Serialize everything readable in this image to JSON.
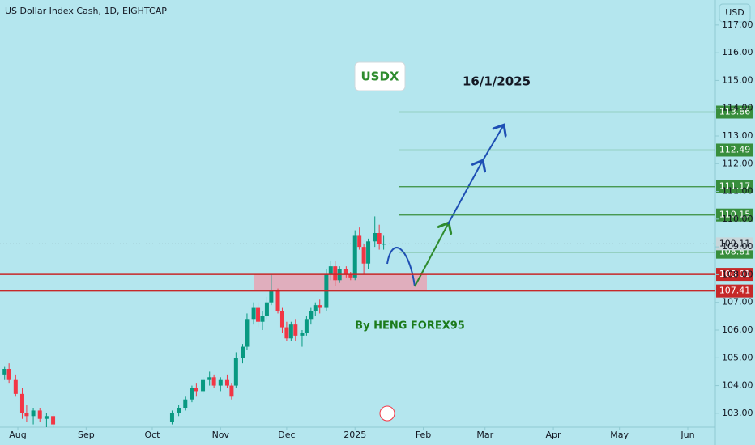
{
  "chart_data": {
    "type": "candlestick",
    "title": "US Dollar Index Cash, 1D, EIGHTCAP",
    "currency": "USD",
    "annotations": {
      "symbol": "USDX",
      "date": "16/1/2025",
      "author": "By HENG FOREX95"
    },
    "colors": {
      "up": "#089981",
      "down": "#f23645"
    },
    "x": [
      -6,
      -4,
      -1,
      2,
      4,
      7,
      10,
      13,
      16,
      70,
      73,
      76,
      79,
      81,
      84,
      87,
      89,
      92,
      95,
      97,
      99,
      102,
      104,
      107,
      109,
      111,
      113,
      115,
      118,
      120,
      122,
      124,
      126,
      129,
      131,
      133,
      135,
      137,
      140,
      142,
      144,
      146,
      149,
      151,
      153,
      155,
      157,
      159,
      162,
      164,
      166
    ],
    "open": [
      104.4,
      104.6,
      104.2,
      103.7,
      103.0,
      102.9,
      103.1,
      102.8,
      102.9,
      102.7,
      103.0,
      103.2,
      103.5,
      103.9,
      103.8,
      104.2,
      104.3,
      104.0,
      104.2,
      104.0,
      104.0,
      105.0,
      105.4,
      106.4,
      106.8,
      106.3,
      106.5,
      107.0,
      107.4,
      106.7,
      106.1,
      105.7,
      106.2,
      105.8,
      105.9,
      106.4,
      106.7,
      106.9,
      106.8,
      108.0,
      108.3,
      107.8,
      108.2,
      108.0,
      107.9,
      109.4,
      109.0,
      108.4,
      109.2,
      109.5,
      109.1
    ],
    "high": [
      104.7,
      104.8,
      104.4,
      103.9,
      103.3,
      103.2,
      103.2,
      103.0,
      103.0,
      103.1,
      103.3,
      103.6,
      104.0,
      104.1,
      104.3,
      104.5,
      104.4,
      104.3,
      104.4,
      104.1,
      105.2,
      105.5,
      106.6,
      107.0,
      107.0,
      106.7,
      107.2,
      108.0,
      107.5,
      106.8,
      106.3,
      106.3,
      106.4,
      106.0,
      106.5,
      106.8,
      107.0,
      107.1,
      108.2,
      108.5,
      108.5,
      108.3,
      108.3,
      108.1,
      109.6,
      109.7,
      109.1,
      109.3,
      110.1,
      109.8,
      109.4
    ],
    "low": [
      104.2,
      104.1,
      103.6,
      102.8,
      102.7,
      102.6,
      102.7,
      102.5,
      102.4,
      102.6,
      102.9,
      103.1,
      103.4,
      103.6,
      103.7,
      104.0,
      103.9,
      103.8,
      103.9,
      103.5,
      103.9,
      104.8,
      105.3,
      106.2,
      106.1,
      106.0,
      106.4,
      106.9,
      106.6,
      105.9,
      105.6,
      105.6,
      105.6,
      105.4,
      105.8,
      106.2,
      106.5,
      106.6,
      106.7,
      107.8,
      107.6,
      107.7,
      107.9,
      107.8,
      107.8,
      108.9,
      108.0,
      108.2,
      109.0,
      108.9,
      108.9
    ],
    "close": [
      104.6,
      104.2,
      103.7,
      103.0,
      102.9,
      103.1,
      102.8,
      102.9,
      102.6,
      103.0,
      103.2,
      103.5,
      103.9,
      103.8,
      104.2,
      104.3,
      104.0,
      104.2,
      104.0,
      103.6,
      105.0,
      105.4,
      106.4,
      106.8,
      106.3,
      106.5,
      107.0,
      107.4,
      106.7,
      106.1,
      105.7,
      106.2,
      105.8,
      105.9,
      106.4,
      106.7,
      106.9,
      106.8,
      108.0,
      108.3,
      107.8,
      108.2,
      108.0,
      107.9,
      109.4,
      109.0,
      108.4,
      109.2,
      109.5,
      109.1,
      109.11
    ],
    "levels": [
      {
        "value": 113.86,
        "color": "#388e3c"
      },
      {
        "value": 112.49,
        "color": "#388e3c"
      },
      {
        "value": 111.17,
        "color": "#388e3c"
      },
      {
        "value": 110.15,
        "color": "#388e3c"
      },
      {
        "value": 108.81,
        "color": "#388e3c"
      },
      {
        "value": 108.01,
        "color": "#c62828"
      },
      {
        "value": 107.41,
        "color": "#c62828"
      }
    ],
    "last_price": 109.11,
    "xlim": [
      -8.1,
      316.5
    ],
    "ylim": [
      102.5,
      117.9
    ],
    "xticks": [
      {
        "value": 0,
        "label": "Aug"
      },
      {
        "value": 31,
        "label": "Sep"
      },
      {
        "value": 61,
        "label": "Oct"
      },
      {
        "value": 92,
        "label": "Nov"
      },
      {
        "value": 122,
        "label": "Dec"
      },
      {
        "value": 153,
        "label": "2025"
      },
      {
        "value": 184,
        "label": "Feb"
      },
      {
        "value": 212,
        "label": "Mar"
      },
      {
        "value": 243,
        "label": "Apr"
      },
      {
        "value": 273,
        "label": "May"
      },
      {
        "value": 304,
        "label": "Jun"
      }
    ],
    "yticks": [
      {
        "value": 103,
        "label": "103.00"
      },
      {
        "value": 104,
        "label": "104.00"
      },
      {
        "value": 105,
        "label": "105.00"
      },
      {
        "value": 106,
        "label": "106.00"
      },
      {
        "value": 107,
        "label": "107.00"
      },
      {
        "value": 108,
        "label": "108.00"
      },
      {
        "value": 109,
        "label": "109.00"
      },
      {
        "value": 110,
        "label": "110.00"
      },
      {
        "value": 111,
        "label": "111.00"
      },
      {
        "value": 112,
        "label": "112.00"
      },
      {
        "value": 113,
        "label": "113.00"
      },
      {
        "value": 114,
        "label": "114.00"
      },
      {
        "value": 115,
        "label": "115.00"
      },
      {
        "value": 116,
        "label": "116.00"
      },
      {
        "value": 117,
        "label": "117.00"
      }
    ]
  }
}
